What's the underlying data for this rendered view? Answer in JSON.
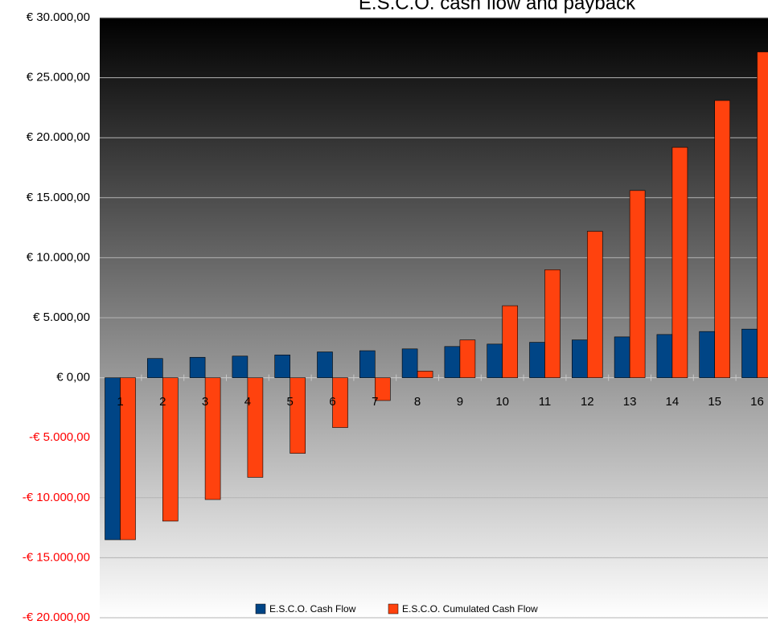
{
  "chart_data": {
    "type": "bar",
    "title": "E.S.C.O. cash flow and payback",
    "xlabel": "",
    "ylabel": "",
    "categories": [
      "1",
      "2",
      "3",
      "4",
      "5",
      "6",
      "7",
      "8",
      "9",
      "10",
      "11",
      "12",
      "13",
      "14",
      "15",
      "16"
    ],
    "series": [
      {
        "name": "E.S.C.O. Cash Flow",
        "color": "#004586",
        "values": [
          -13500,
          1600,
          1700,
          1800,
          1900,
          2150,
          2250,
          2400,
          2600,
          2800,
          2950,
          3150,
          3400,
          3600,
          3850,
          4050
        ]
      },
      {
        "name": "E.S.C.O.  Cumulated Cash Flow",
        "color": "#ff420e",
        "values": [
          -13500,
          -11950,
          -10150,
          -8300,
          -6300,
          -4150,
          -1900,
          550,
          3150,
          6000,
          9000,
          12200,
          15600,
          19200,
          23100,
          27150
        ]
      }
    ],
    "ylim": [
      -20000,
      30000
    ],
    "ytick_step": 5000,
    "y_tick_labels": [
      "€ 30.000,00",
      "€ 25.000,00",
      "€ 20.000,00",
      "€ 15.000,00",
      "€ 10.000,00",
      "€ 5.000,00",
      "€ 0,00",
      "-€ 5.000,00",
      "-€ 10.000,00",
      "-€ 15.000,00",
      "-€ 20.000,00"
    ],
    "negative_tick_color": "#ff0000",
    "grid": true,
    "legend_position": "bottom"
  }
}
